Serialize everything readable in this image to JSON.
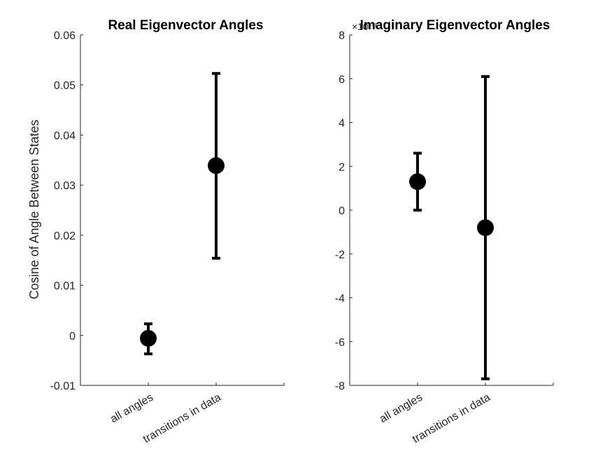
{
  "chart_data": [
    {
      "type": "scatter",
      "title": "Real Eigenvector Angles",
      "ylabel": "Cosine of Angle Between States",
      "xlabel": "",
      "categories": [
        "all angles",
        "transitions in data"
      ],
      "values": [
        -0.0006,
        0.0339
      ],
      "error_low": [
        -0.0037,
        0.0154
      ],
      "error_high": [
        0.0023,
        0.0523
      ],
      "xlim": [
        0,
        3
      ],
      "ylim": [
        -0.01,
        0.06
      ],
      "yticks": [
        -0.01,
        0,
        0.01,
        0.02,
        0.03,
        0.04,
        0.05,
        0.06
      ],
      "ytick_labels": [
        "-0.01",
        "0",
        "0.01",
        "0.02",
        "0.03",
        "0.04",
        "0.05",
        "0.06"
      ],
      "exponent_label": "",
      "grid": false,
      "color": "#000000"
    },
    {
      "type": "scatter",
      "title": "Imaginary Eigenvector Angles",
      "ylabel": "",
      "xlabel": "",
      "categories": [
        "all angles",
        "transitions in data"
      ],
      "values": [
        0.0013,
        -0.0008
      ],
      "error_low": [
        0.0,
        -0.0077
      ],
      "error_high": [
        0.0026,
        0.0061
      ],
      "xlim": [
        0,
        3
      ],
      "ylim": [
        -0.008,
        0.008
      ],
      "yticks": [
        -0.008,
        -0.006,
        -0.004,
        -0.002,
        0,
        0.002,
        0.004,
        0.006,
        0.008
      ],
      "ytick_labels": [
        "-8",
        "-6",
        "-4",
        "-2",
        "0",
        "2",
        "4",
        "6",
        "8"
      ],
      "exponent_label": "×10⁻³",
      "grid": false,
      "color": "#000000"
    }
  ]
}
